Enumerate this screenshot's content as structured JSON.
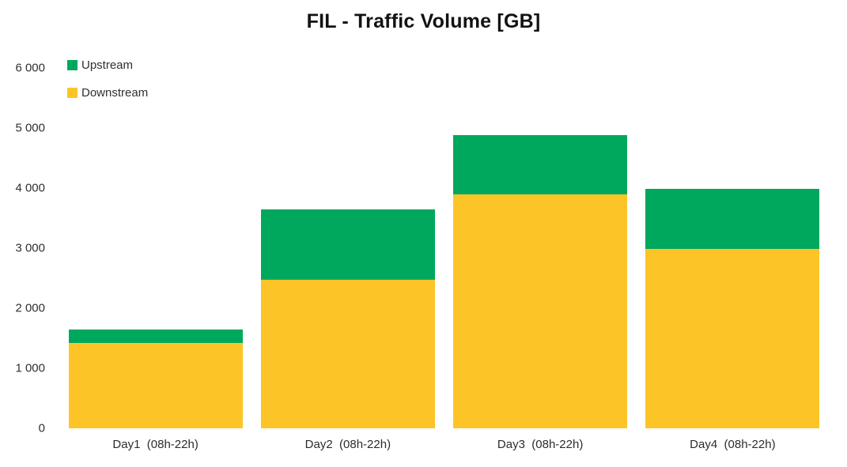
{
  "title": "FIL - Traffic Volume [GB]",
  "colors": {
    "upstream_green": "#00A85D",
    "downstream_yellow": "#FDC428",
    "background": "#FFFFFF",
    "text": "#2F2F2F"
  },
  "legend": {
    "items": [
      {
        "label": "Upstream",
        "color": "#00A85D"
      },
      {
        "label": "Downstream",
        "color": "#FDC428"
      }
    ],
    "position": "top-left"
  },
  "y_axis": {
    "ticks": [
      "6 000",
      "5 000",
      "4 000",
      "3 000",
      "2 000",
      "1 000",
      "0"
    ],
    "min": 0,
    "max": 6000,
    "step": 1000
  },
  "chart_data": {
    "type": "bar",
    "stacked": true,
    "title": "FIL - Traffic Volume [GB]",
    "categories": [
      "Day1  (08h-22h)",
      "Day2  (08h-22h)",
      "Day3  (08h-22h)",
      "Day4  (08h-22h)"
    ],
    "series": [
      {
        "name": "Downstream",
        "color": "#FDC428",
        "values": [
          1420,
          2480,
          3890,
          2990
        ]
      },
      {
        "name": "Upstream",
        "color": "#00A85D",
        "values": [
          230,
          1160,
          990,
          1000
        ]
      }
    ],
    "totals": [
      1650,
      3640,
      4880,
      3990
    ],
    "xlabel": "",
    "ylabel": "",
    "ylim": [
      0,
      6000
    ],
    "ytick_step": 1000,
    "grid": false,
    "axis_lines": false,
    "legend_position": "top-left"
  }
}
